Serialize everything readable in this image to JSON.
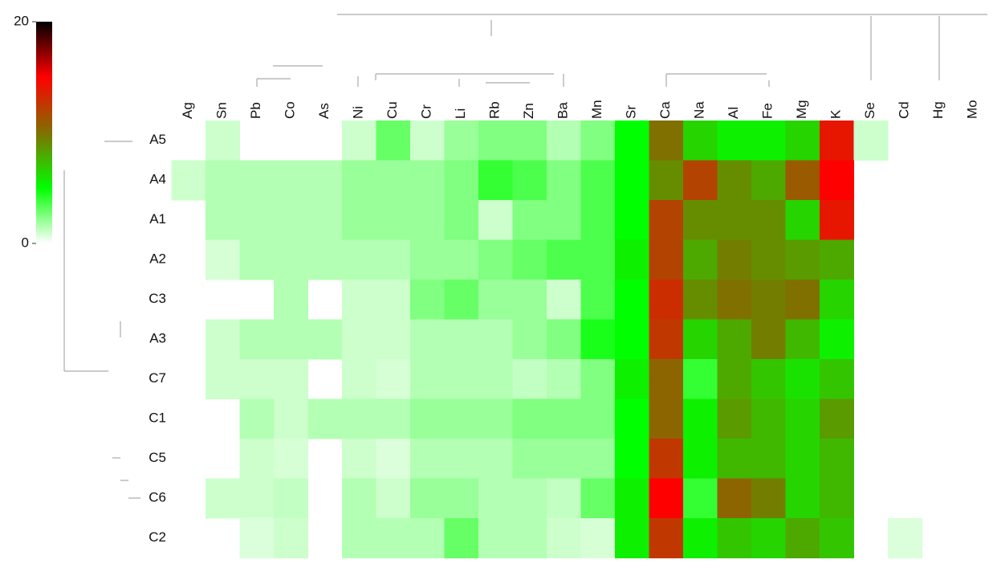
{
  "chart_data": {
    "type": "heatmap",
    "x": [
      "Ag",
      "Sn",
      "Pb",
      "Co",
      "As",
      "Ni",
      "Cu",
      "Cr",
      "Li",
      "Rb",
      "Zn",
      "Ba",
      "Mn",
      "Sr",
      "Ca",
      "Na",
      "Al",
      "Fe",
      "Mg",
      "K",
      "Se",
      "Cd",
      "Hg",
      "Mo"
    ],
    "y": [
      "A5",
      "A4",
      "A1",
      "A2",
      "C3",
      "A3",
      "C7",
      "C1",
      "C5",
      "C6",
      "C2"
    ],
    "values": [
      [
        null,
        1,
        null,
        null,
        null,
        1,
        3,
        1,
        2,
        2.5,
        2.5,
        1.5,
        2.5,
        5,
        10,
        6.5,
        5.5,
        5.5,
        6.5,
        14,
        1,
        null,
        null,
        null
      ],
      [
        1,
        1.5,
        1.5,
        1.5,
        1.5,
        2,
        2,
        2,
        2.5,
        4,
        3.5,
        2.5,
        3.5,
        5,
        9,
        12,
        9,
        8,
        11,
        15,
        null,
        null,
        null,
        null
      ],
      [
        null,
        1.5,
        1.5,
        1.5,
        1.5,
        2,
        2,
        2,
        2.5,
        1,
        2.5,
        2.5,
        3.5,
        5,
        12,
        9,
        9,
        9,
        6.5,
        14,
        null,
        null,
        null,
        null
      ],
      [
        null,
        0.8,
        1.5,
        1.5,
        1.5,
        1.5,
        1.5,
        2,
        2,
        2.5,
        3,
        3.5,
        3.5,
        5.5,
        12,
        8,
        9.5,
        9,
        8.5,
        8,
        null,
        null,
        null,
        null
      ],
      [
        null,
        null,
        null,
        1.5,
        null,
        1,
        1,
        2.5,
        3,
        2,
        2,
        1,
        3.5,
        5,
        13,
        9,
        10,
        9.5,
        10,
        6.5,
        null,
        null,
        null,
        null
      ],
      [
        null,
        1,
        1.5,
        1.5,
        1.5,
        1,
        1,
        1.5,
        1.5,
        1.5,
        2,
        2.5,
        4.5,
        5,
        12.5,
        6.5,
        8,
        9.5,
        7.5,
        5.5,
        null,
        null,
        null,
        null
      ],
      [
        null,
        1,
        1,
        1,
        null,
        1,
        0.8,
        1.5,
        1.5,
        1.5,
        1.2,
        1.5,
        2.5,
        5.5,
        10.5,
        4,
        8,
        7,
        6,
        7,
        null,
        null,
        null,
        null
      ],
      [
        null,
        null,
        1.5,
        1,
        1.5,
        1.5,
        1.5,
        2,
        2,
        2,
        2.5,
        2.5,
        2.5,
        5,
        10.5,
        5.5,
        8.5,
        7.5,
        6.5,
        8.5,
        null,
        null,
        null,
        null
      ],
      [
        null,
        null,
        1,
        0.8,
        null,
        1,
        0.7,
        1.5,
        1.5,
        1.5,
        2,
        2,
        2,
        5,
        12.5,
        5.5,
        7.5,
        7.5,
        6.5,
        7.5,
        null,
        null,
        null,
        null
      ],
      [
        null,
        1,
        1,
        1.2,
        null,
        1.5,
        1,
        2,
        2,
        1.5,
        1.5,
        1.2,
        3,
        5.5,
        15,
        4,
        10.5,
        9.5,
        6.5,
        7.5,
        null,
        null,
        null,
        null
      ],
      [
        null,
        null,
        0.7,
        1,
        null,
        1.5,
        1.5,
        1.5,
        3,
        1.5,
        1.5,
        1,
        0.8,
        5.5,
        12.5,
        5.5,
        7,
        6.5,
        8,
        7,
        null,
        0.7,
        null,
        null
      ]
    ],
    "colormap": [
      "#ffffff",
      "#00ff00",
      "#807000",
      "#ff0000",
      "#000000"
    ],
    "zlim": [
      0,
      20
    ],
    "zticks": [
      0,
      20
    ]
  }
}
